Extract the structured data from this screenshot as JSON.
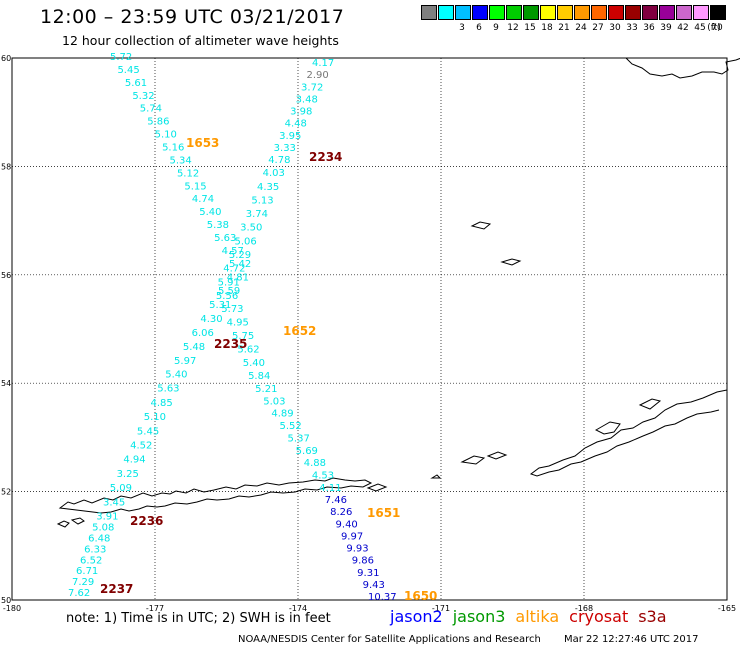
{
  "header": {
    "title": "12:00 – 23:59 UTC 03/21/2017",
    "subtitle": "12 hour collection of altimeter wave heights"
  },
  "colorbar": {
    "unit": "(ft)",
    "swatches": [
      {
        "color": "#7f7f7f",
        "label": ""
      },
      {
        "color": "#00ffff",
        "label": "3"
      },
      {
        "color": "#00bfff",
        "label": "6"
      },
      {
        "color": "#0000ff",
        "label": "9"
      },
      {
        "color": "#00ff00",
        "label": "12"
      },
      {
        "color": "#00cc00",
        "label": "15"
      },
      {
        "color": "#009900",
        "label": "18"
      },
      {
        "color": "#ffff00",
        "label": "21"
      },
      {
        "color": "#ffcc00",
        "label": "24"
      },
      {
        "color": "#ff9900",
        "label": "27"
      },
      {
        "color": "#ff6600",
        "label": "30"
      },
      {
        "color": "#cc0000",
        "label": "33"
      },
      {
        "color": "#990000",
        "label": "36"
      },
      {
        "color": "#800040",
        "label": "39"
      },
      {
        "color": "#990099",
        "label": "42"
      },
      {
        "color": "#cc66cc",
        "label": "45"
      },
      {
        "color": "#ff99ff",
        "label": "70"
      },
      {
        "color": "#000000",
        "label": ""
      }
    ]
  },
  "map": {
    "lon_range": [
      -180,
      -165
    ],
    "lat_range": [
      50,
      60
    ],
    "lon_ticks": [
      "-180",
      "-177",
      "-174",
      "-171",
      "-168",
      "-165"
    ],
    "lat_ticks": [
      "60",
      "58",
      "56",
      "54",
      "52",
      "50"
    ],
    "colors": {
      "cyan": "#00e5e5",
      "blue": "#0000cc",
      "gray": "#777777",
      "orange": "#ff9900",
      "darkred": "#800000"
    }
  },
  "tracks": {
    "track_a": [
      "5.72",
      "5.45",
      "5.61",
      "5.32",
      "5.74",
      "5.86",
      "5.10",
      "5.16",
      "5.34",
      "5.12",
      "5.15",
      "4.74",
      "5.40",
      "5.38",
      "5.63",
      "4.57",
      "5.42",
      "4.81",
      "5.59",
      "5.31",
      "4.30",
      "6.06",
      "5.48",
      "5.97",
      "5.40",
      "5.63",
      "4.85",
      "5.10",
      "5.45",
      "4.52",
      "4.94",
      "3.25",
      "5.09",
      "3.45",
      "3.91",
      "5.08",
      "6.48",
      "6.33",
      "6.52",
      "6.71",
      "7.29",
      "7.62"
    ],
    "track_b": [
      "4.17",
      "2.90",
      "3.72",
      "3.48",
      "3.98",
      "4.48",
      "3.95",
      "3.33",
      "4.78",
      "4.03",
      "4.35",
      "5.13",
      "3.74",
      "3.50",
      "5.06",
      "5.29",
      "4.72",
      "5.91",
      "5.56",
      "5.73",
      "4.95",
      "5.75",
      "5.62",
      "5.40",
      "5.84",
      "5.21",
      "5.03",
      "4.89",
      "5.52",
      "5.37",
      "5.69",
      "4.88",
      "4.53",
      "4.11",
      "7.46",
      "8.26",
      "9.40",
      "9.97",
      "9.93",
      "9.86",
      "9.31",
      "9.43",
      "10.37"
    ]
  },
  "times": [
    {
      "text": "1653",
      "color": "orange"
    },
    {
      "text": "2234",
      "color": "darkred"
    },
    {
      "text": "1652",
      "color": "orange"
    },
    {
      "text": "2235",
      "color": "darkred"
    },
    {
      "text": "1651",
      "color": "orange"
    },
    {
      "text": "2236",
      "color": "darkred"
    },
    {
      "text": "1650",
      "color": "orange"
    },
    {
      "text": "2237",
      "color": "darkred"
    }
  ],
  "footer": {
    "note": "note:  1) Time is in UTC;  2) SWH is in feet",
    "legend": [
      {
        "name": "jason2",
        "color": "#0000ff"
      },
      {
        "name": "jason3",
        "color": "#009900"
      },
      {
        "name": "altika",
        "color": "#ff9900"
      },
      {
        "name": "cryosat",
        "color": "#cc0000"
      },
      {
        "name": "s3a",
        "color": "#990000"
      }
    ],
    "credit": "NOAA/NESDIS Center for Satellite Applications and Research",
    "stamp": "Mar 22 12:27:46 UTC 2017"
  }
}
